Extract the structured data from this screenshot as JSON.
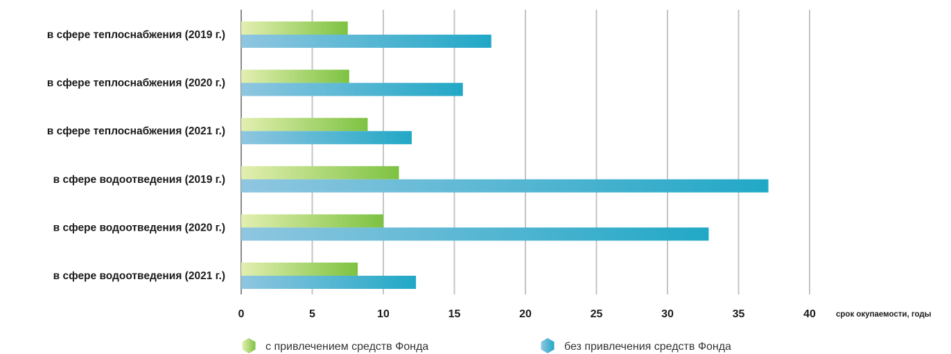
{
  "chart_data": {
    "type": "bar",
    "orientation": "horizontal",
    "categories": [
      "в сфере теплоснабжения (2019 г.)",
      "в сфере теплоснабжения (2020 г.)",
      "в сфере теплоснабжения (2021 г.)",
      "в сфере водоотведения (2019 г.)",
      "в сфере водоотведения (2020 г.)",
      "в сфере водоотведения (2021 г.)"
    ],
    "series": [
      {
        "name": "с привлечением средств Фонда",
        "values": [
          7.5,
          7.6,
          8.9,
          11.1,
          10.0,
          8.2
        ],
        "color_start": "#e3efb0",
        "color_end": "#7dc242"
      },
      {
        "name": "без привлечения средств Фонда",
        "values": [
          17.6,
          15.6,
          12.0,
          37.1,
          32.9,
          12.3
        ],
        "color_start": "#8fc6e0",
        "color_end": "#21a8c6"
      }
    ],
    "xlabel": "срок окупаемости, годы",
    "ylabel": "",
    "xlim": [
      0,
      40
    ],
    "xticks": [
      "0",
      "5",
      "10",
      "15",
      "20",
      "25",
      "30",
      "35",
      "40"
    ],
    "grid": true,
    "legend_position": "bottom"
  }
}
